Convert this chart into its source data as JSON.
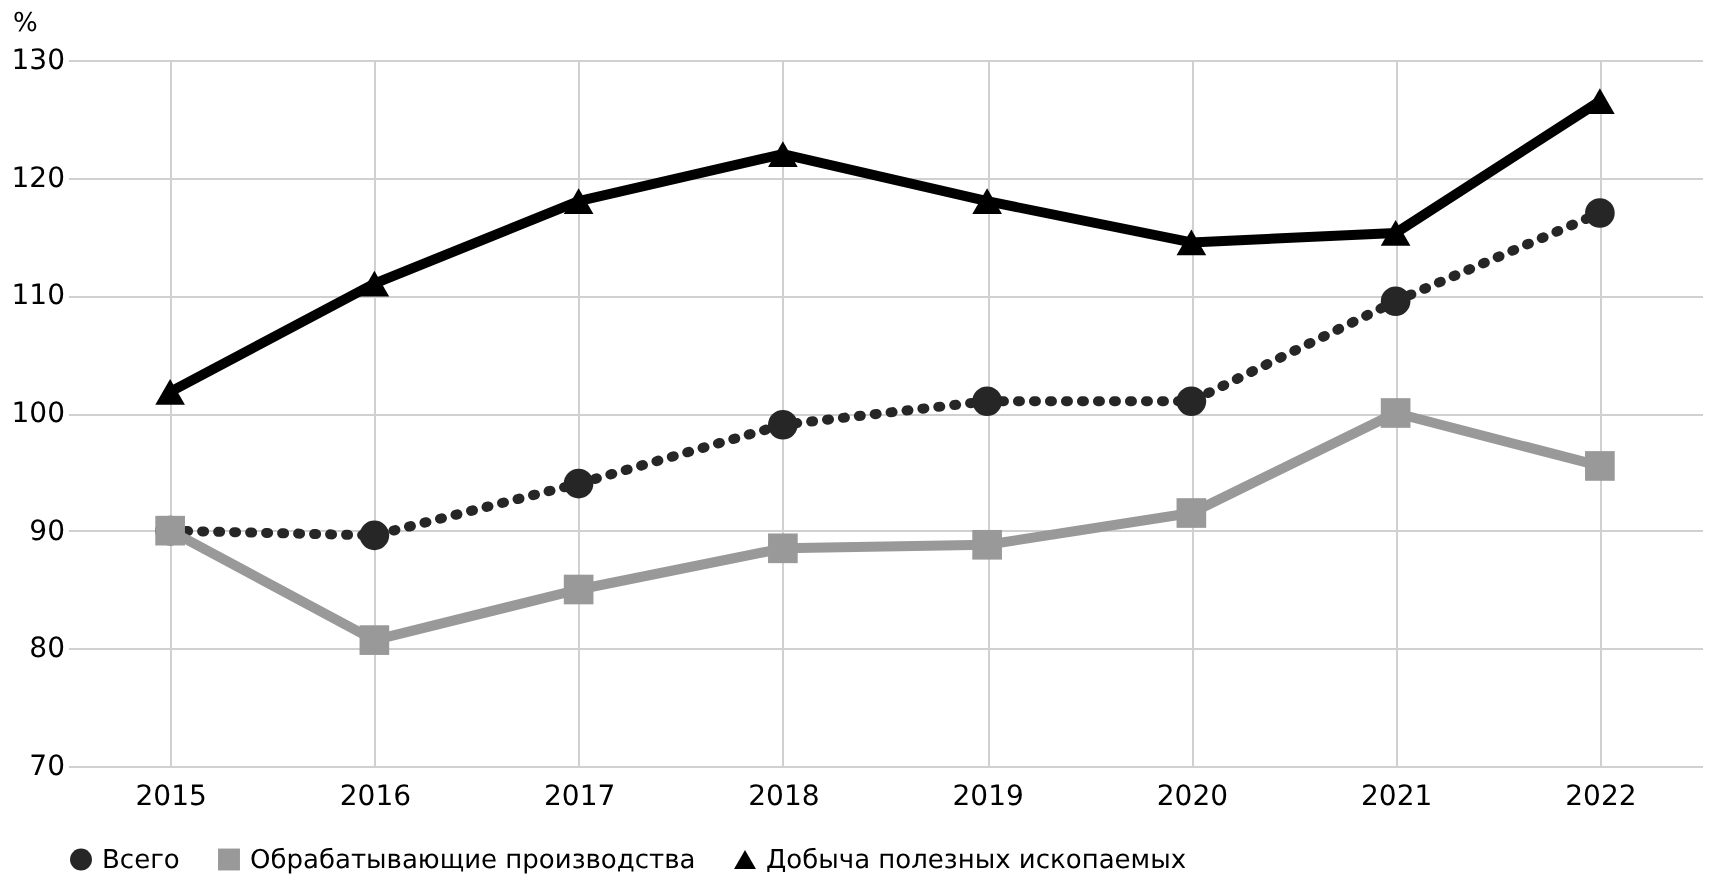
{
  "chart_data": {
    "type": "line",
    "ylabel": "%",
    "categories": [
      "2015",
      "2016",
      "2017",
      "2018",
      "2019",
      "2020",
      "2021",
      "2022"
    ],
    "series": [
      {
        "name": "Всего",
        "color": "#262626",
        "marker": "circle",
        "line_style": "dotted",
        "values": [
          90,
          89.6,
          94,
          99,
          101,
          101,
          109.5,
          117
        ]
      },
      {
        "name": "Обрабатывающие производства",
        "color": "#999999",
        "marker": "square",
        "line_style": "solid",
        "values": [
          90,
          80.7,
          85,
          88.5,
          88.8,
          91.5,
          100,
          95.5
        ]
      },
      {
        "name": "Добыча полезных ископаемых",
        "color": "#000000",
        "marker": "triangle",
        "line_style": "solid",
        "values": [
          101.8,
          111,
          118,
          122,
          118,
          114.5,
          115.3,
          126.5
        ]
      }
    ],
    "ylim": [
      70,
      130
    ],
    "yticks": [
      70,
      80,
      90,
      100,
      110,
      120,
      130
    ],
    "grid": true,
    "legend": "bottom"
  }
}
